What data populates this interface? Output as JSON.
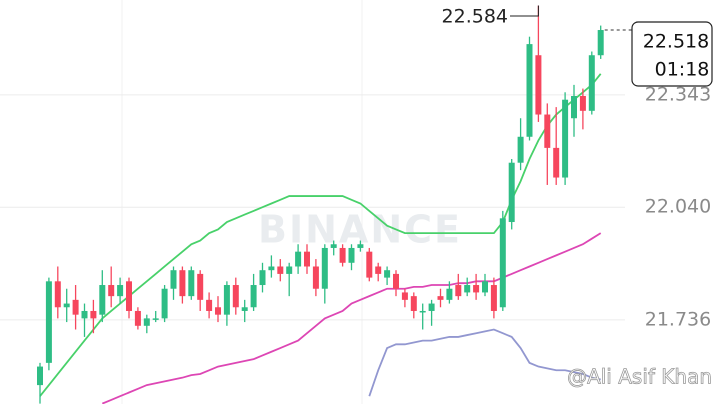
{
  "chart_data": {
    "type": "candlestick",
    "watermark": "BINANCE",
    "credit": "@Ali Asif Khan",
    "high_annotation": {
      "value": 22.584,
      "label": "22.584"
    },
    "last_price": {
      "value": 22.518,
      "label": "22.518"
    },
    "countdown": "01:18",
    "ylim": [
      21.509,
      22.599
    ],
    "yticks": [
      21.736,
      {
        "value": 22.04,
        "label": "22.040"
      },
      22.343
    ],
    "grid": true,
    "up_color": "#2ebd85",
    "down_color": "#f6465d",
    "open": [
      21.56,
      21.62,
      21.84,
      21.77,
      21.79,
      21.74,
      21.76,
      21.75,
      21.83,
      21.8,
      21.84,
      21.76,
      21.72,
      21.74,
      21.74,
      21.82,
      21.87,
      21.8,
      21.86,
      21.79,
      21.77,
      21.75,
      21.83,
      21.76,
      21.77,
      21.83,
      21.87,
      21.88,
      21.86,
      21.88,
      21.92,
      21.88,
      21.82,
      21.93,
      21.93,
      21.89,
      21.93,
      21.92,
      21.88,
      21.85,
      21.86,
      21.81,
      21.8,
      21.76,
      21.76,
      21.8,
      21.79,
      21.83,
      21.81,
      21.83,
      21.81,
      21.83,
      21.77,
      22.0,
      22.16,
      22.23,
      22.45,
      22.29,
      22.2,
      22.12,
      22.28,
      22.34,
      22.3,
      22.45
    ],
    "high": [
      21.62,
      21.85,
      21.88,
      21.82,
      21.83,
      21.78,
      21.79,
      21.87,
      21.88,
      21.85,
      21.85,
      21.77,
      21.75,
      21.76,
      21.83,
      21.88,
      21.88,
      21.88,
      21.87,
      21.81,
      21.8,
      21.84,
      21.85,
      21.79,
      21.86,
      21.89,
      21.91,
      21.9,
      21.89,
      21.94,
      21.94,
      21.9,
      21.94,
      21.95,
      21.94,
      21.94,
      21.95,
      21.93,
      21.89,
      21.88,
      21.87,
      21.82,
      21.81,
      21.78,
      21.79,
      21.82,
      21.84,
      21.86,
      21.85,
      21.86,
      21.86,
      21.85,
      22.03,
      22.17,
      22.28,
      22.5,
      22.584,
      22.32,
      22.31,
      22.35,
      22.37,
      22.36,
      22.46,
      22.53
    ],
    "low": [
      21.51,
      21.6,
      21.74,
      21.73,
      21.71,
      21.69,
      21.7,
      21.73,
      21.77,
      21.78,
      21.74,
      21.71,
      21.7,
      21.73,
      21.73,
      21.79,
      21.78,
      21.79,
      21.76,
      21.74,
      21.73,
      21.72,
      21.75,
      21.73,
      21.76,
      21.81,
      21.85,
      21.84,
      21.8,
      21.86,
      21.86,
      21.8,
      21.78,
      21.91,
      21.88,
      21.87,
      21.92,
      21.84,
      21.84,
      21.83,
      21.8,
      21.77,
      21.74,
      21.71,
      21.72,
      21.77,
      21.78,
      21.79,
      21.8,
      21.79,
      21.8,
      21.74,
      21.76,
      21.98,
      22.14,
      22.22,
      22.27,
      22.1,
      22.1,
      22.1,
      22.23,
      22.25,
      22.29,
      22.44
    ],
    "close": [
      21.61,
      21.84,
      21.77,
      21.78,
      21.75,
      21.76,
      21.74,
      21.83,
      21.8,
      21.83,
      21.76,
      21.72,
      21.74,
      21.74,
      21.82,
      21.87,
      21.8,
      21.87,
      21.79,
      21.76,
      21.75,
      21.83,
      21.77,
      21.77,
      21.83,
      21.87,
      21.88,
      21.86,
      21.88,
      21.92,
      21.88,
      21.82,
      21.93,
      21.94,
      21.89,
      21.93,
      21.94,
      21.85,
      21.86,
      21.87,
      21.82,
      21.79,
      21.76,
      21.76,
      21.78,
      21.79,
      21.82,
      21.8,
      21.83,
      21.81,
      21.84,
      21.76,
      22.01,
      22.16,
      22.23,
      22.48,
      22.29,
      22.2,
      22.12,
      22.33,
      22.34,
      22.3,
      22.45,
      22.518
    ],
    "series": [
      {
        "color": "#48d16a",
        "values": [
          21.53,
          21.56,
          21.59,
          21.62,
          21.65,
          21.68,
          21.71,
          21.74,
          21.76,
          21.78,
          21.8,
          21.82,
          21.84,
          21.86,
          21.88,
          21.9,
          21.92,
          21.94,
          21.95,
          21.97,
          21.98,
          22.0,
          22.01,
          22.02,
          22.03,
          22.04,
          22.05,
          22.06,
          22.07,
          22.07,
          22.07,
          22.07,
          22.07,
          22.07,
          22.07,
          22.06,
          22.05,
          22.03,
          22.01,
          21.99,
          21.98,
          21.97,
          21.97,
          21.97,
          21.97,
          21.97,
          21.97,
          21.97,
          21.97,
          21.97,
          21.97,
          21.97,
          22.0,
          22.06,
          22.11,
          22.17,
          22.22,
          22.26,
          22.29,
          22.31,
          22.33,
          22.35,
          22.37,
          22.4
        ]
      },
      {
        "color": "#dd46b4",
        "values": [
          null,
          null,
          null,
          null,
          null,
          null,
          null,
          21.51,
          21.52,
          21.53,
          21.54,
          21.55,
          21.56,
          21.565,
          21.57,
          21.575,
          21.58,
          21.587,
          21.59,
          21.6,
          21.61,
          21.615,
          21.62,
          21.625,
          21.63,
          21.64,
          21.65,
          21.66,
          21.67,
          21.68,
          21.7,
          21.72,
          21.74,
          21.75,
          21.76,
          21.78,
          21.79,
          21.8,
          21.81,
          21.82,
          21.82,
          21.82,
          21.825,
          21.825,
          21.83,
          21.83,
          21.83,
          21.835,
          21.835,
          21.84,
          21.84,
          21.84,
          21.85,
          21.86,
          21.87,
          21.88,
          21.89,
          21.9,
          21.91,
          21.92,
          21.93,
          21.94,
          21.955,
          21.97
        ]
      },
      {
        "color": "#9297d0",
        "values": [
          null,
          null,
          null,
          null,
          null,
          null,
          null,
          null,
          null,
          null,
          null,
          null,
          null,
          null,
          null,
          null,
          null,
          null,
          null,
          null,
          null,
          null,
          null,
          null,
          null,
          null,
          null,
          null,
          null,
          null,
          null,
          null,
          null,
          null,
          null,
          null,
          null,
          21.53,
          21.6,
          21.66,
          21.67,
          21.67,
          21.675,
          21.68,
          21.68,
          21.685,
          21.69,
          21.69,
          21.695,
          21.7,
          21.705,
          21.71,
          21.7,
          21.69,
          21.66,
          21.62,
          21.61,
          21.605,
          21.6,
          21.6,
          21.595,
          21.59,
          21.58,
          21.575
        ]
      }
    ]
  }
}
